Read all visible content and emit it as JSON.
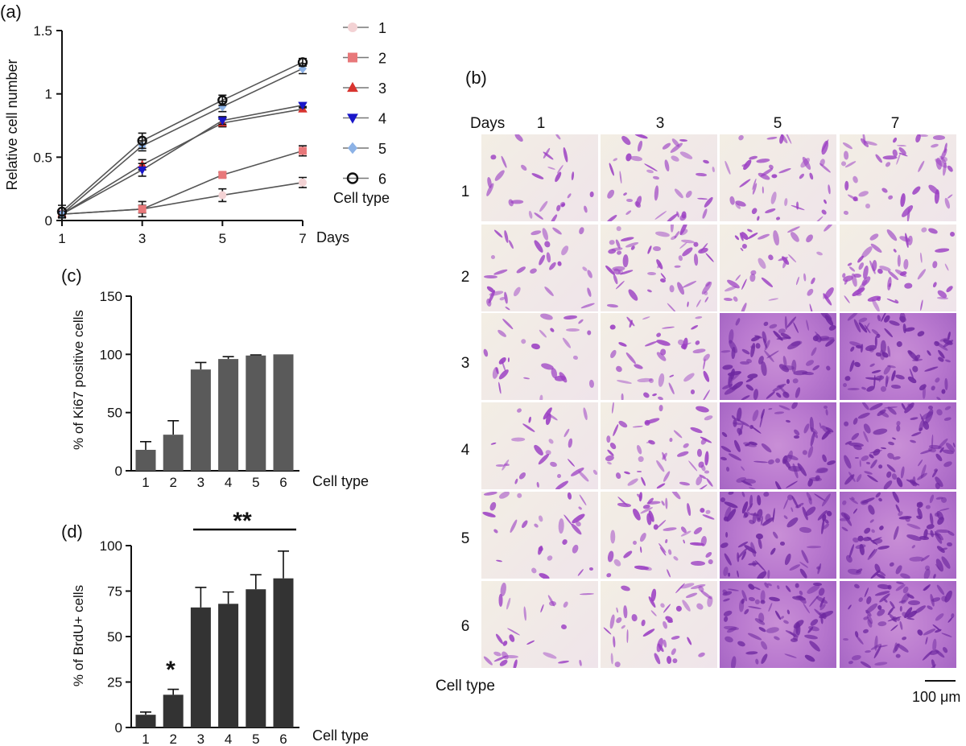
{
  "figure": {
    "panel_labels": [
      "(a)",
      "(b)",
      "(c)",
      "(d)"
    ]
  },
  "colors": {
    "s1": "#f3d2d4",
    "s2": "#e8787a",
    "s3": "#d8342f",
    "s4": "#1a17c9",
    "s5": "#8cb2e6",
    "s6": "#111111",
    "bar_c": "#5a5a5a",
    "bar_d": "#333333",
    "stain": "#9b3fc3",
    "bg_micro": "#f3eee4"
  },
  "chart_data": [
    {
      "id": "a",
      "type": "line",
      "x": [
        1,
        3,
        5,
        7
      ],
      "xlabel": "Days",
      "ylabel": "Relative cell number",
      "ylim": [
        0,
        1.5
      ],
      "yticks": [
        0,
        0.5,
        1,
        1.5
      ],
      "ytick_labels": [
        "0",
        "0.5",
        "1",
        "1.5"
      ],
      "legend_title": "Cell type",
      "legend_position": "right",
      "series": [
        {
          "name": "1",
          "marker": "circle",
          "values": [
            0.05,
            0.09,
            0.2,
            0.3
          ],
          "err": [
            0.02,
            0.06,
            0.05,
            0.04
          ]
        },
        {
          "name": "2",
          "marker": "square",
          "values": [
            0.05,
            0.09,
            0.36,
            0.55
          ],
          "err": [
            0.02,
            0.03,
            0.02,
            0.04
          ]
        },
        {
          "name": "3",
          "marker": "triangle-up",
          "values": [
            0.05,
            0.44,
            0.77,
            0.88
          ],
          "err": [
            0.02,
            0.04,
            0.03,
            0.02
          ]
        },
        {
          "name": "4",
          "marker": "triangle-down",
          "values": [
            0.05,
            0.4,
            0.79,
            0.91
          ],
          "err": [
            0.02,
            0.05,
            0.03,
            0.02
          ]
        },
        {
          "name": "5",
          "marker": "diamond",
          "values": [
            0.05,
            0.59,
            0.9,
            1.2
          ],
          "err": [
            0.02,
            0.04,
            0.04,
            0.04
          ]
        },
        {
          "name": "6",
          "marker": "open-circle",
          "values": [
            0.07,
            0.63,
            0.95,
            1.25
          ],
          "err": [
            0.05,
            0.06,
            0.04,
            0.03
          ]
        }
      ]
    },
    {
      "id": "c",
      "type": "bar",
      "categories": [
        "1",
        "2",
        "3",
        "4",
        "5",
        "6"
      ],
      "values": [
        18,
        31,
        87,
        96,
        99,
        100
      ],
      "err": [
        7,
        12,
        6,
        2,
        0.5,
        0
      ],
      "ylabel": "% of Ki67 positive cells",
      "xlabel": "Cell type",
      "ylim": [
        0,
        150
      ],
      "yticks": [
        0,
        50,
        100,
        150
      ]
    },
    {
      "id": "d",
      "type": "bar",
      "categories": [
        "1",
        "2",
        "3",
        "4",
        "5",
        "6"
      ],
      "values": [
        7,
        18,
        66,
        68,
        76,
        82
      ],
      "err": [
        1.5,
        3,
        11,
        6.5,
        8,
        15
      ],
      "ylabel": "% of BrdU+ cells",
      "xlabel": "Cell type",
      "ylim": [
        0,
        100
      ],
      "yticks": [
        0,
        25,
        50,
        75,
        100
      ],
      "annotations": [
        "*",
        "**"
      ]
    }
  ],
  "panel_b": {
    "header": "Days",
    "columns": [
      "1",
      "3",
      "5",
      "7"
    ],
    "rows": [
      "1",
      "2",
      "3",
      "4",
      "5",
      "6"
    ],
    "row_axis_label": "Cell type",
    "scale_bar": "100 μm",
    "density": [
      [
        0.2,
        0.35,
        0.4,
        0.45
      ],
      [
        0.25,
        0.55,
        0.35,
        0.55
      ],
      [
        0.2,
        0.35,
        0.85,
        0.9
      ],
      [
        0.2,
        0.45,
        0.75,
        0.95
      ],
      [
        0.2,
        0.45,
        0.85,
        0.95
      ],
      [
        0.15,
        0.4,
        0.85,
        0.95
      ]
    ]
  }
}
